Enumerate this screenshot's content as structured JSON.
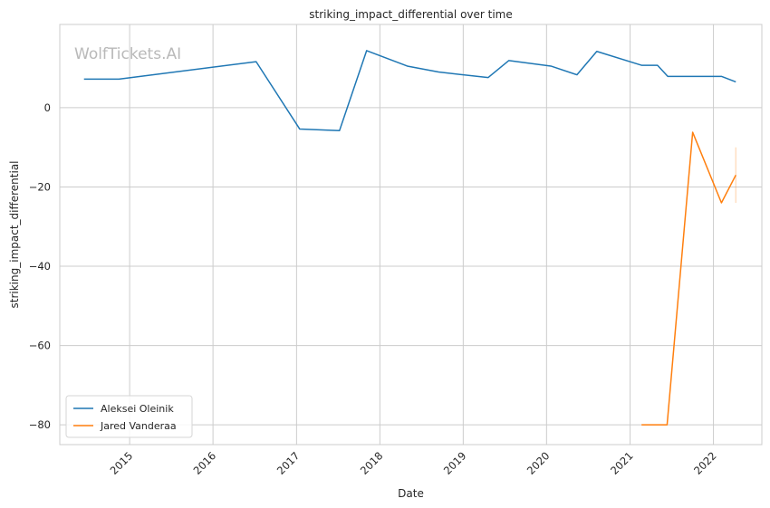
{
  "watermark": "WolfTickets.AI",
  "chart_data": {
    "type": "line",
    "title": "striking_impact_differential over time",
    "xlabel": "Date",
    "ylabel": "striking_impact_differential",
    "xlim": [
      "2014-03-01",
      "2022-08-01"
    ],
    "ylim": [
      -85,
      21
    ],
    "x_ticks": [
      "2015",
      "2016",
      "2017",
      "2018",
      "2019",
      "2020",
      "2021",
      "2022"
    ],
    "y_ticks": [
      0,
      -20,
      -40,
      -60,
      -80
    ],
    "grid": true,
    "legend_position": "lower-left",
    "series": [
      {
        "name": "Aleksei Oleinik",
        "color": "#1f77b4",
        "points": [
          [
            "2014-06-15",
            7.2
          ],
          [
            "2014-11-15",
            7.2
          ],
          [
            "2016-07-08",
            11.6
          ],
          [
            "2017-01-15",
            -5.4
          ],
          [
            "2017-07-08",
            -5.8
          ],
          [
            "2017-11-04",
            14.4
          ],
          [
            "2018-05-01",
            10.5
          ],
          [
            "2018-09-15",
            9.0
          ],
          [
            "2019-04-20",
            7.6
          ],
          [
            "2019-07-20",
            11.9
          ],
          [
            "2020-01-20",
            10.5
          ],
          [
            "2020-05-13",
            8.3
          ],
          [
            "2020-08-08",
            14.2
          ],
          [
            "2021-02-20",
            10.7
          ],
          [
            "2021-05-01",
            10.7
          ],
          [
            "2021-06-15",
            7.9
          ],
          [
            "2022-02-05",
            7.9
          ],
          [
            "2022-04-09",
            6.5
          ]
        ]
      },
      {
        "name": "Jared Vanderaa",
        "color": "#ff7f0e",
        "points": [
          [
            "2021-02-20",
            -80.0
          ],
          [
            "2021-06-12",
            -80.0
          ],
          [
            "2021-10-02",
            -6.2
          ],
          [
            "2022-02-05",
            -24.0
          ],
          [
            "2022-04-09",
            -17.0
          ]
        ]
      }
    ],
    "error_band": {
      "series": "Jared Vanderaa",
      "x": "2022-04-09",
      "low": -24.0,
      "high": -10.0
    }
  }
}
